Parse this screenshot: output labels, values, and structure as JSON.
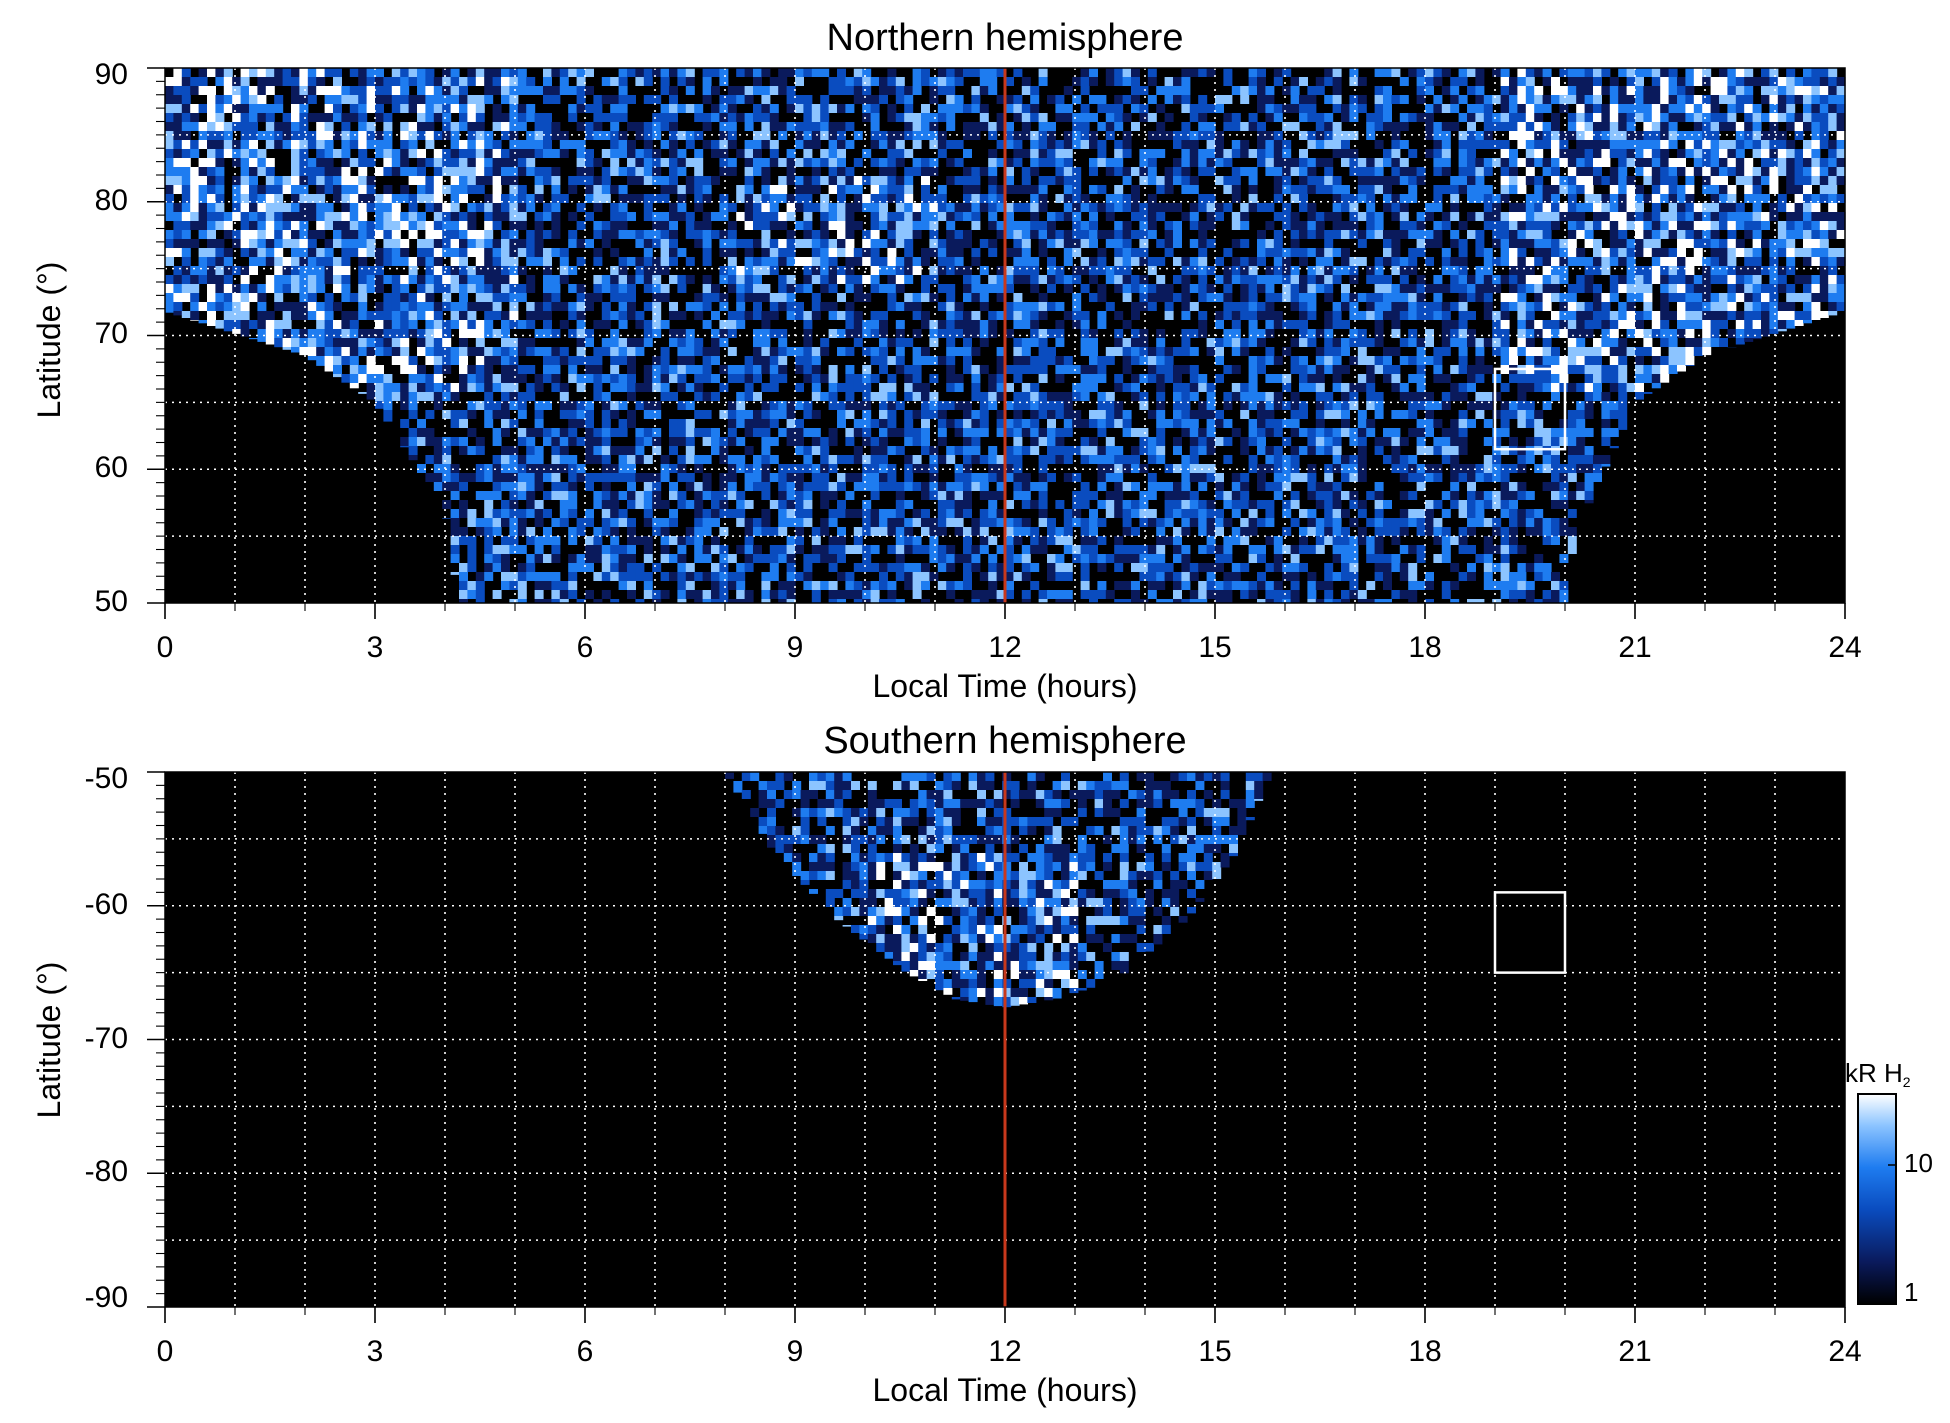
{
  "chart_data": [
    {
      "type": "heatmap",
      "title": "Northern hemisphere",
      "xlabel": "Local Time (hours)",
      "ylabel": "Latitude (°)",
      "xlim": [
        0,
        24
      ],
      "ylim": [
        50,
        90
      ],
      "x_ticks": [
        0,
        3,
        6,
        9,
        12,
        15,
        18,
        21,
        24
      ],
      "x_tick_labels": [
        "0",
        "3",
        "6",
        "9",
        "12",
        "15",
        "18",
        "21",
        "24"
      ],
      "y_ticks": [
        50,
        60,
        70,
        80,
        90
      ],
      "y_tick_labels": [
        "50",
        "60",
        "70",
        "80",
        "90"
      ],
      "grid": true,
      "grid_style": "dotted",
      "reference_line": {
        "x": 12,
        "color": "#c8381c"
      },
      "box": {
        "x": [
          19,
          20
        ],
        "y": [
          61.5,
          67.5
        ],
        "color": "#ffffff"
      },
      "coverage": "high emission at 70–90° on the flanks; data coverage bottom follows a bowl reaching down to 50° between roughly 4 and 20 LT",
      "coverage_boundary": [
        [
          0,
          71.8
        ],
        [
          2,
          68.5
        ],
        [
          3,
          65
        ],
        [
          4,
          57
        ],
        [
          4.2,
          50
        ],
        [
          20,
          50
        ],
        [
          20.3,
          57
        ],
        [
          21,
          65
        ],
        [
          22,
          68.5
        ],
        [
          24,
          71.8
        ]
      ]
    },
    {
      "type": "heatmap",
      "title": "Southern hemisphere",
      "xlabel": "Local Time (hours)",
      "ylabel": "Latitude (°)",
      "xlim": [
        0,
        24
      ],
      "ylim": [
        -90,
        -50
      ],
      "x_ticks": [
        0,
        3,
        6,
        9,
        12,
        15,
        18,
        21,
        24
      ],
      "x_tick_labels": [
        "0",
        "3",
        "6",
        "9",
        "12",
        "15",
        "18",
        "21",
        "24"
      ],
      "y_ticks": [
        -50,
        -60,
        -70,
        -80,
        -90
      ],
      "y_tick_labels": [
        "-50",
        "-60",
        "-70",
        "-80",
        "-90"
      ],
      "grid": true,
      "grid_style": "dotted",
      "reference_line": {
        "x": 12,
        "color": "#c8381c"
      },
      "box": {
        "x": [
          19,
          20
        ],
        "y": [
          -65,
          -59
        ],
        "color": "#ffffff"
      },
      "coverage": "emission confined to a bowl from about 8 to 16 LT, from -50° down to about -68°",
      "coverage_boundary": [
        [
          8,
          -50
        ],
        [
          8.7,
          -56
        ],
        [
          9.6,
          -61
        ],
        [
          10.6,
          -65
        ],
        [
          11.3,
          -67
        ],
        [
          12,
          -67.6
        ],
        [
          12.7,
          -67
        ],
        [
          13.6,
          -65.5
        ],
        [
          14.6,
          -61
        ],
        [
          15.3,
          -56
        ],
        [
          15.8,
          -50
        ]
      ]
    }
  ],
  "colorbar": {
    "unit_label": "kR H",
    "unit_subscript": "2",
    "scale": "log",
    "ticks": [
      1,
      10
    ],
    "tick_labels": [
      "1",
      "10"
    ],
    "colors": [
      "#000000",
      "#0a1a5c",
      "#0a4cbf",
      "#1e7cf0",
      "#8cc4ff",
      "#ffffff"
    ]
  }
}
